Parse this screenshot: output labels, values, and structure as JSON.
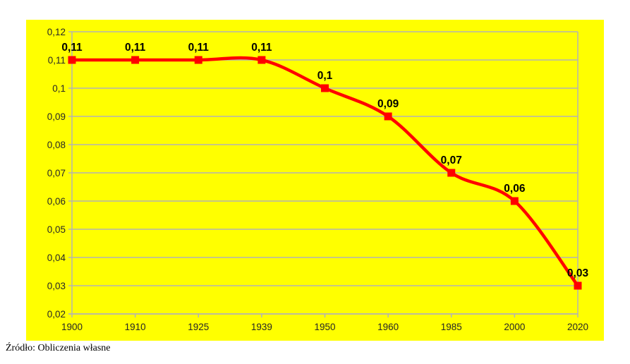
{
  "page": {
    "caption": "Źródło: Obliczenia własne"
  },
  "chart_data": {
    "type": "line",
    "title": "",
    "xlabel": "",
    "ylabel": "",
    "categories": [
      "1900",
      "1910",
      "1925",
      "1939",
      "1950",
      "1960",
      "1985",
      "2000",
      "2020"
    ],
    "values": [
      0.11,
      0.11,
      0.11,
      0.11,
      0.1,
      0.09,
      0.07,
      0.06,
      0.03
    ],
    "data_labels": [
      "0,11",
      "0,11",
      "0,11",
      "0,11",
      "0,1",
      "0,09",
      "0,07",
      "0,06",
      "0,03"
    ],
    "y_tick_labels": [
      "0,12",
      "0,11",
      "0,1",
      "0,09",
      "0,08",
      "0,07",
      "0,06",
      "0,05",
      "0,04",
      "0,03",
      "0,02"
    ],
    "ylim": [
      0.02,
      0.12
    ],
    "y_step": 0.01,
    "grid": true,
    "legend_position": "none",
    "smooth_line": true,
    "colors": {
      "chart_background": "#ffff00",
      "line": "#ff0000",
      "marker": "#ff0000",
      "grid": "#b3b3b3",
      "axis": "#b3b3b3",
      "tick_text": "#262626",
      "data_label_text": "#000000"
    }
  }
}
